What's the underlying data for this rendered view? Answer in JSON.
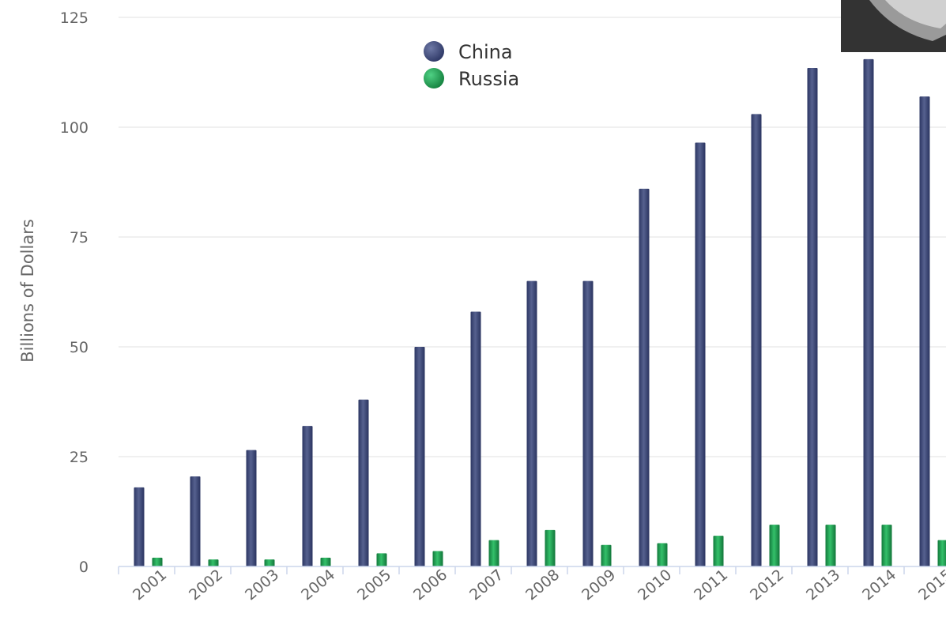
{
  "chart_data": {
    "type": "bar",
    "title": "",
    "xlabel": "",
    "ylabel": "Billions of Dollars",
    "ylim": [
      0,
      125
    ],
    "yticks": [
      0,
      25,
      50,
      75,
      100,
      125
    ],
    "grid": true,
    "legend_position": "top-center",
    "categories": [
      "2001",
      "2002",
      "2003",
      "2004",
      "2005",
      "2006",
      "2007",
      "2008",
      "2009",
      "2010",
      "2011",
      "2012",
      "2013",
      "2014",
      "2015"
    ],
    "series": [
      {
        "name": "China",
        "color": "#3f4a7a",
        "values": [
          18,
          20.5,
          26.5,
          32,
          38,
          50,
          58,
          65,
          65,
          86,
          96.5,
          103,
          113.5,
          115.5,
          107
        ]
      },
      {
        "name": "Russia",
        "color": "#22a355",
        "values": [
          2,
          1.6,
          1.6,
          2,
          3,
          3.5,
          6,
          8.3,
          4.9,
          5.3,
          7,
          9.5,
          9.5,
          9.5,
          6
        ]
      }
    ]
  },
  "colors": {
    "gridline": "#e6e6e6",
    "axis": "#ccd6eb",
    "text": "#666666",
    "logo_background": "#333333"
  },
  "icons": {
    "corner_logo": "partial-logo-icon"
  }
}
